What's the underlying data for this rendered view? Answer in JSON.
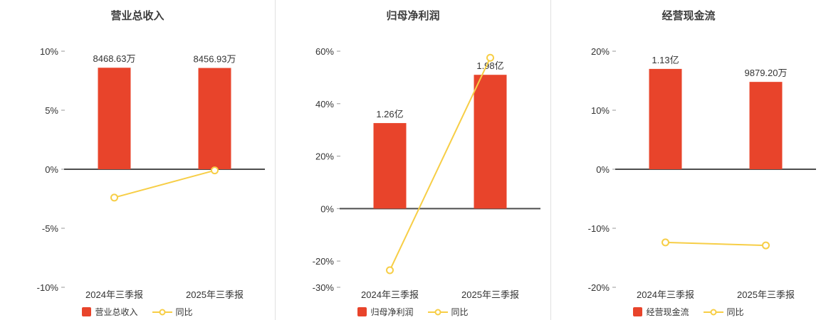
{
  "page": {
    "background": "#ffffff"
  },
  "colors": {
    "bar": "#e8442b",
    "line": "#f7ce46",
    "zero_axis": "#4d4d4d",
    "tick_mark": "#999999",
    "text": "#333333",
    "separator": "#e0e0e0"
  },
  "chart_data": [
    {
      "type": "bar",
      "title": "营业总收入",
      "categories": [
        "2024年三季报",
        "2025年三季报"
      ],
      "ylim": [
        -10,
        10
      ],
      "yticks": [
        10,
        5,
        0,
        -5,
        -10
      ],
      "ytick_suffix": "%",
      "grid": false,
      "legend_position": "bottom",
      "bar_series": {
        "name": "营业总收入",
        "value_labels": [
          "8468.63万",
          "8456.93万"
        ],
        "bar_top_pct": [
          8.6,
          8.58
        ]
      },
      "line_series": {
        "name": "同比",
        "values_pct": [
          -2.4,
          -0.1
        ]
      }
    },
    {
      "type": "bar",
      "title": "归母净利润",
      "categories": [
        "2024年三季报",
        "2025年三季报"
      ],
      "ylim": [
        -30,
        60
      ],
      "yticks": [
        60,
        40,
        20,
        0,
        -20,
        -30
      ],
      "ytick_suffix": "%",
      "grid": false,
      "legend_position": "bottom",
      "bar_series": {
        "name": "归母净利润",
        "value_labels": [
          "1.26亿",
          "1.98亿"
        ],
        "bar_top_pct": [
          32.6,
          51.0
        ]
      },
      "line_series": {
        "name": "同比",
        "values_pct": [
          -23.5,
          57.5
        ]
      }
    },
    {
      "type": "bar",
      "title": "经营现金流",
      "categories": [
        "2024年三季报",
        "2025年三季报"
      ],
      "ylim": [
        -20,
        20
      ],
      "yticks": [
        20,
        10,
        0,
        -10,
        -20
      ],
      "ytick_suffix": "%",
      "grid": false,
      "legend_position": "bottom",
      "bar_series": {
        "name": "经营现金流",
        "value_labels": [
          "1.13亿",
          "9879.20万"
        ],
        "bar_top_pct": [
          17.0,
          14.8
        ]
      },
      "line_series": {
        "name": "同比",
        "values_pct": [
          -12.4,
          -12.9
        ]
      }
    }
  ]
}
